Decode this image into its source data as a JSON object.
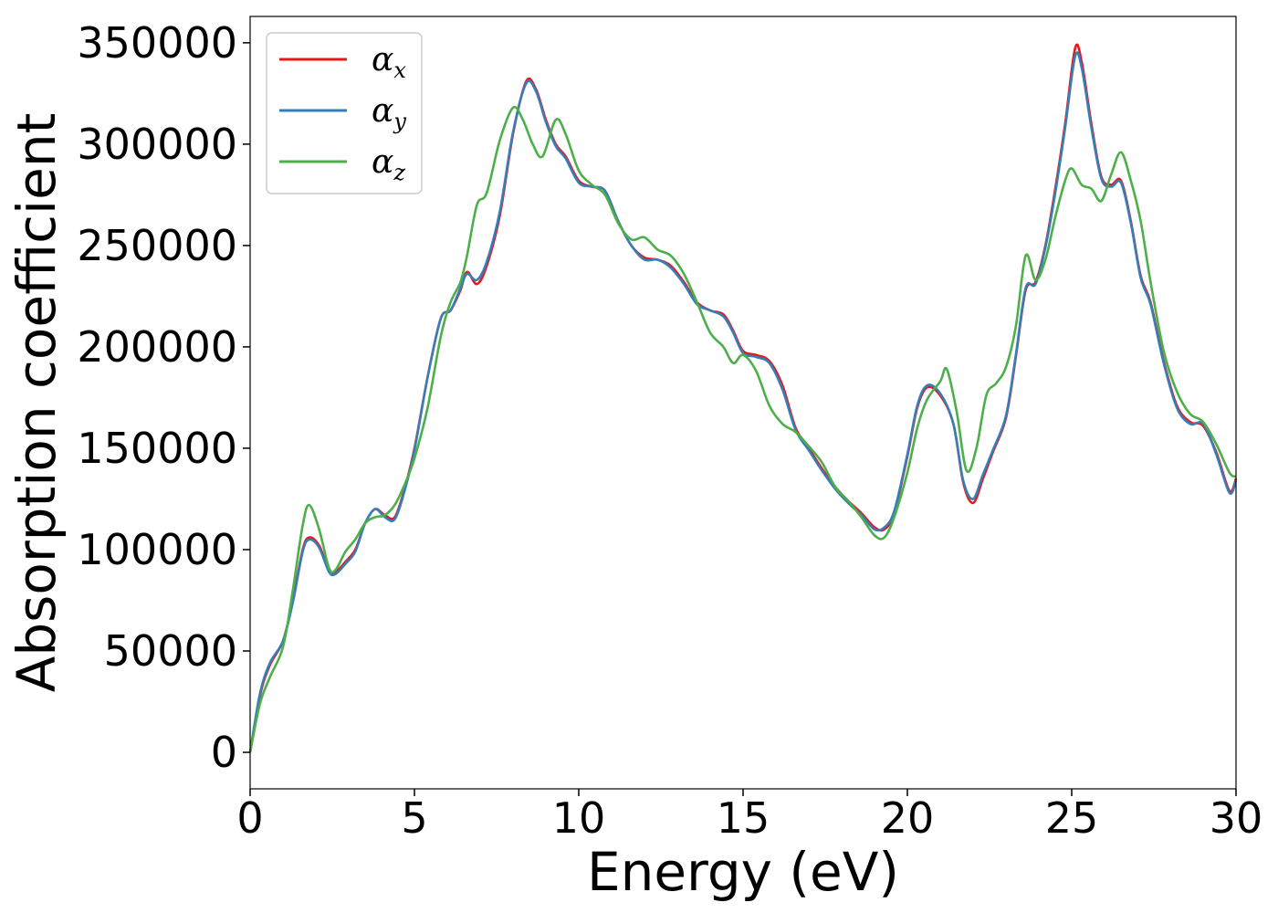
{
  "chart_data": {
    "type": "line",
    "title": "",
    "xlabel": "Energy (eV)",
    "ylabel": "Absorption coefficient",
    "xlim": [
      0,
      30
    ],
    "ylim": [
      -18000,
      363000
    ],
    "xticks": [
      0,
      5,
      10,
      15,
      20,
      25,
      30
    ],
    "yticks": [
      0,
      50000,
      100000,
      150000,
      200000,
      250000,
      300000,
      350000
    ],
    "xtick_labels": [
      "0",
      "5",
      "10",
      "15",
      "20",
      "25",
      "30"
    ],
    "ytick_labels": [
      "0",
      "50000",
      "100000",
      "150000",
      "200000",
      "250000",
      "300000",
      "350000"
    ],
    "grid": false,
    "legend": "top-left",
    "series": [
      {
        "name": "α",
        "subscript": "x",
        "color": "#e41a1c",
        "points": [
          [
            0,
            0
          ],
          [
            0.3,
            28000
          ],
          [
            0.6,
            43000
          ],
          [
            1.0,
            55000
          ],
          [
            1.3,
            75000
          ],
          [
            1.6,
            100000
          ],
          [
            1.8,
            106000
          ],
          [
            2.1,
            102000
          ],
          [
            2.4,
            90000
          ],
          [
            2.6,
            89000
          ],
          [
            2.9,
            94000
          ],
          [
            3.2,
            100000
          ],
          [
            3.5,
            113000
          ],
          [
            3.8,
            120000
          ],
          [
            4.1,
            117000
          ],
          [
            4.4,
            116000
          ],
          [
            4.7,
            130000
          ],
          [
            5.0,
            150000
          ],
          [
            5.4,
            185000
          ],
          [
            5.8,
            214000
          ],
          [
            6.1,
            218000
          ],
          [
            6.4,
            228000
          ],
          [
            6.6,
            237000
          ],
          [
            6.9,
            231000
          ],
          [
            7.2,
            240000
          ],
          [
            7.6,
            265000
          ],
          [
            8.0,
            305000
          ],
          [
            8.4,
            331000
          ],
          [
            8.7,
            327000
          ],
          [
            9.0,
            312000
          ],
          [
            9.3,
            300000
          ],
          [
            9.6,
            294000
          ],
          [
            10.0,
            282000
          ],
          [
            10.4,
            279000
          ],
          [
            10.8,
            277000
          ],
          [
            11.2,
            262000
          ],
          [
            11.6,
            250000
          ],
          [
            12.0,
            244000
          ],
          [
            12.4,
            243000
          ],
          [
            12.8,
            240000
          ],
          [
            13.2,
            232000
          ],
          [
            13.6,
            222000
          ],
          [
            14.0,
            218000
          ],
          [
            14.4,
            216000
          ],
          [
            14.7,
            208000
          ],
          [
            15.0,
            198000
          ],
          [
            15.4,
            196000
          ],
          [
            15.8,
            193000
          ],
          [
            16.2,
            181000
          ],
          [
            16.6,
            160000
          ],
          [
            17.0,
            150000
          ],
          [
            17.4,
            140000
          ],
          [
            17.8,
            131000
          ],
          [
            18.2,
            124000
          ],
          [
            18.6,
            118000
          ],
          [
            19.0,
            111000
          ],
          [
            19.3,
            110000
          ],
          [
            19.6,
            118000
          ],
          [
            20.0,
            146000
          ],
          [
            20.3,
            170000
          ],
          [
            20.6,
            180000
          ],
          [
            21.0,
            176000
          ],
          [
            21.4,
            162000
          ],
          [
            21.7,
            133000
          ],
          [
            22.0,
            123000
          ],
          [
            22.3,
            135000
          ],
          [
            22.6,
            148000
          ],
          [
            23.0,
            165000
          ],
          [
            23.3,
            195000
          ],
          [
            23.6,
            228000
          ],
          [
            23.9,
            232000
          ],
          [
            24.2,
            250000
          ],
          [
            24.5,
            278000
          ],
          [
            24.8,
            310000
          ],
          [
            25.1,
            347000
          ],
          [
            25.3,
            341000
          ],
          [
            25.6,
            310000
          ],
          [
            25.9,
            284000
          ],
          [
            26.2,
            280000
          ],
          [
            26.5,
            282000
          ],
          [
            26.8,
            262000
          ],
          [
            27.1,
            235000
          ],
          [
            27.4,
            222000
          ],
          [
            27.8,
            193000
          ],
          [
            28.2,
            171000
          ],
          [
            28.6,
            163000
          ],
          [
            29.0,
            161000
          ],
          [
            29.4,
            148000
          ],
          [
            29.8,
            129000
          ],
          [
            30.0,
            135000
          ]
        ]
      },
      {
        "name": "α",
        "subscript": "y",
        "color": "#377eb8",
        "points": [
          [
            0,
            0
          ],
          [
            0.3,
            29000
          ],
          [
            0.6,
            44000
          ],
          [
            1.0,
            55000
          ],
          [
            1.3,
            74000
          ],
          [
            1.6,
            99000
          ],
          [
            1.8,
            105000
          ],
          [
            2.1,
            101000
          ],
          [
            2.4,
            89000
          ],
          [
            2.6,
            88000
          ],
          [
            2.9,
            93000
          ],
          [
            3.2,
            99000
          ],
          [
            3.5,
            113000
          ],
          [
            3.8,
            120000
          ],
          [
            4.1,
            116000
          ],
          [
            4.4,
            115000
          ],
          [
            4.7,
            129000
          ],
          [
            5.0,
            149000
          ],
          [
            5.4,
            185000
          ],
          [
            5.8,
            214000
          ],
          [
            6.1,
            218000
          ],
          [
            6.4,
            229000
          ],
          [
            6.6,
            236000
          ],
          [
            6.9,
            233000
          ],
          [
            7.2,
            242000
          ],
          [
            7.6,
            267000
          ],
          [
            8.0,
            306000
          ],
          [
            8.4,
            330000
          ],
          [
            8.7,
            326000
          ],
          [
            9.0,
            311000
          ],
          [
            9.3,
            299000
          ],
          [
            9.6,
            293000
          ],
          [
            10.0,
            281000
          ],
          [
            10.4,
            279000
          ],
          [
            10.8,
            277000
          ],
          [
            11.2,
            262000
          ],
          [
            11.6,
            250000
          ],
          [
            12.0,
            243000
          ],
          [
            12.4,
            243000
          ],
          [
            12.8,
            239000
          ],
          [
            13.2,
            231000
          ],
          [
            13.6,
            221000
          ],
          [
            14.0,
            218000
          ],
          [
            14.4,
            215000
          ],
          [
            14.7,
            207000
          ],
          [
            15.0,
            197000
          ],
          [
            15.4,
            195000
          ],
          [
            15.8,
            192000
          ],
          [
            16.2,
            179000
          ],
          [
            16.6,
            159000
          ],
          [
            17.0,
            149000
          ],
          [
            17.4,
            139000
          ],
          [
            17.8,
            130000
          ],
          [
            18.2,
            123000
          ],
          [
            18.6,
            117000
          ],
          [
            19.0,
            110000
          ],
          [
            19.3,
            111000
          ],
          [
            19.6,
            119000
          ],
          [
            20.0,
            147000
          ],
          [
            20.3,
            171000
          ],
          [
            20.6,
            181000
          ],
          [
            21.0,
            177000
          ],
          [
            21.4,
            162000
          ],
          [
            21.7,
            134000
          ],
          [
            22.0,
            125000
          ],
          [
            22.3,
            137000
          ],
          [
            22.6,
            149000
          ],
          [
            23.0,
            166000
          ],
          [
            23.3,
            196000
          ],
          [
            23.6,
            229000
          ],
          [
            23.9,
            231000
          ],
          [
            24.2,
            249000
          ],
          [
            24.5,
            276000
          ],
          [
            24.8,
            308000
          ],
          [
            25.1,
            343000
          ],
          [
            25.3,
            338000
          ],
          [
            25.6,
            308000
          ],
          [
            25.9,
            283000
          ],
          [
            26.2,
            279000
          ],
          [
            26.5,
            281000
          ],
          [
            26.8,
            261000
          ],
          [
            27.1,
            234000
          ],
          [
            27.4,
            221000
          ],
          [
            27.8,
            192000
          ],
          [
            28.2,
            170000
          ],
          [
            28.6,
            162000
          ],
          [
            29.0,
            162000
          ],
          [
            29.4,
            147000
          ],
          [
            29.8,
            128000
          ],
          [
            30.0,
            134000
          ]
        ]
      },
      {
        "name": "α",
        "subscript": "z",
        "color": "#4daf4a",
        "points": [
          [
            0,
            0
          ],
          [
            0.3,
            24000
          ],
          [
            0.6,
            37000
          ],
          [
            1.0,
            52000
          ],
          [
            1.3,
            80000
          ],
          [
            1.6,
            112000
          ],
          [
            1.8,
            122000
          ],
          [
            2.1,
            110000
          ],
          [
            2.4,
            91000
          ],
          [
            2.6,
            90000
          ],
          [
            2.9,
            99000
          ],
          [
            3.2,
            105000
          ],
          [
            3.5,
            113000
          ],
          [
            3.8,
            116000
          ],
          [
            4.1,
            117000
          ],
          [
            4.4,
            122000
          ],
          [
            4.7,
            132000
          ],
          [
            5.0,
            145000
          ],
          [
            5.4,
            170000
          ],
          [
            5.8,
            205000
          ],
          [
            6.1,
            222000
          ],
          [
            6.4,
            232000
          ],
          [
            6.6,
            245000
          ],
          [
            6.9,
            270000
          ],
          [
            7.2,
            276000
          ],
          [
            7.6,
            302000
          ],
          [
            8.0,
            318000
          ],
          [
            8.3,
            312000
          ],
          [
            8.6,
            300000
          ],
          [
            8.9,
            294000
          ],
          [
            9.3,
            312000
          ],
          [
            9.6,
            305000
          ],
          [
            10.0,
            287000
          ],
          [
            10.4,
            280000
          ],
          [
            10.8,
            275000
          ],
          [
            11.2,
            261000
          ],
          [
            11.6,
            253000
          ],
          [
            12.0,
            254000
          ],
          [
            12.4,
            248000
          ],
          [
            12.8,
            245000
          ],
          [
            13.2,
            236000
          ],
          [
            13.6,
            222000
          ],
          [
            14.0,
            207000
          ],
          [
            14.4,
            200000
          ],
          [
            14.7,
            192000
          ],
          [
            15.0,
            196000
          ],
          [
            15.4,
            188000
          ],
          [
            15.8,
            171000
          ],
          [
            16.2,
            162000
          ],
          [
            16.6,
            158000
          ],
          [
            17.0,
            151000
          ],
          [
            17.4,
            143000
          ],
          [
            17.8,
            131000
          ],
          [
            18.2,
            124000
          ],
          [
            18.6,
            116000
          ],
          [
            19.0,
            107000
          ],
          [
            19.3,
            106000
          ],
          [
            19.6,
            116000
          ],
          [
            20.0,
            138000
          ],
          [
            20.3,
            160000
          ],
          [
            20.6,
            174000
          ],
          [
            21.0,
            183000
          ],
          [
            21.2,
            189000
          ],
          [
            21.5,
            168000
          ],
          [
            21.8,
            139000
          ],
          [
            22.1,
            150000
          ],
          [
            22.4,
            176000
          ],
          [
            22.7,
            182000
          ],
          [
            23.0,
            190000
          ],
          [
            23.3,
            210000
          ],
          [
            23.6,
            245000
          ],
          [
            23.9,
            233000
          ],
          [
            24.2,
            243000
          ],
          [
            24.5,
            264000
          ],
          [
            24.8,
            282000
          ],
          [
            25.0,
            288000
          ],
          [
            25.3,
            280000
          ],
          [
            25.6,
            278000
          ],
          [
            25.9,
            272000
          ],
          [
            26.2,
            285000
          ],
          [
            26.5,
            296000
          ],
          [
            26.8,
            282000
          ],
          [
            27.1,
            262000
          ],
          [
            27.4,
            232000
          ],
          [
            27.8,
            198000
          ],
          [
            28.2,
            178000
          ],
          [
            28.6,
            167000
          ],
          [
            29.0,
            163000
          ],
          [
            29.4,
            152000
          ],
          [
            29.8,
            138000
          ],
          [
            30.0,
            136000
          ]
        ]
      }
    ]
  }
}
